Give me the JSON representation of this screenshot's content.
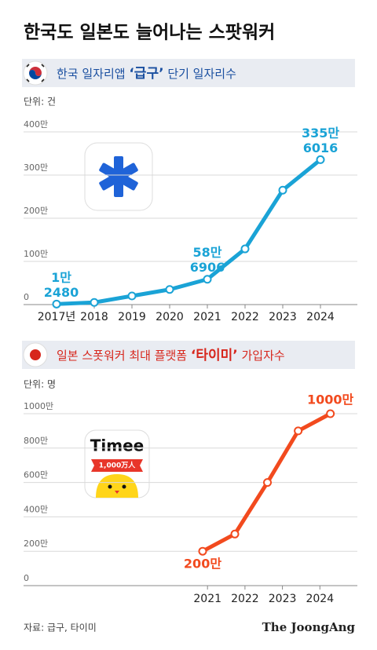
{
  "title": "한국도 일본도 늘어나는 스팟워커",
  "source": "자료: 급구, 타이미",
  "brand": "The JoongAng",
  "chart_data": [
    {
      "type": "line",
      "subtitle": [
        "한국 일자리앱 ",
        "‘급구’",
        " 단기 일자리수"
      ],
      "unit_label": "단위: 건",
      "categories": [
        "2017년",
        "2018",
        "2019",
        "2020",
        "2021",
        "2022",
        "2023",
        "2024"
      ],
      "values": [
        1.248,
        5,
        20,
        35,
        58.6906,
        129,
        265,
        335.6016
      ],
      "value_labels": [
        [
          "1만",
          "2480"
        ],
        null,
        null,
        null,
        [
          "58만",
          "6906"
        ],
        null,
        null,
        [
          "335만",
          "6016"
        ]
      ],
      "color": "#1aa3d6",
      "ylim": [
        0,
        400
      ],
      "yticks": [
        0,
        {
          "value": 100,
          "label": "100만"
        },
        {
          "value": 200,
          "label": "200만"
        },
        {
          "value": 300,
          "label": "300만"
        },
        {
          "value": 400,
          "label": "400만"
        }
      ],
      "grid": true
    },
    {
      "type": "line",
      "subtitle": [
        "일본 스폿워커 최대 플랫폼 ",
        "‘타이미’",
        " 가입자수"
      ],
      "unit_label": "단위: 명",
      "icon_text": [
        "Timee",
        "1,000万人"
      ],
      "x": [
        2020.87,
        2021.73,
        2022.6,
        2023.42,
        2024.28
      ],
      "values": [
        200,
        300,
        600,
        900,
        1000
      ],
      "value_labels": [
        "200만",
        null,
        null,
        null,
        "1000만"
      ],
      "color": "#f24a1e",
      "xlim": [
        2016.3,
        2025
      ],
      "xticks": [
        2021,
        2022,
        2023,
        2024
      ],
      "ylim": [
        0,
        1000
      ],
      "yticks": [
        0,
        {
          "value": 200,
          "label": "200만"
        },
        {
          "value": 400,
          "label": "400만"
        },
        {
          "value": 600,
          "label": "600만"
        },
        {
          "value": 800,
          "label": "800만"
        },
        {
          "value": 1000,
          "label": "1000만"
        }
      ],
      "grid": true
    }
  ]
}
